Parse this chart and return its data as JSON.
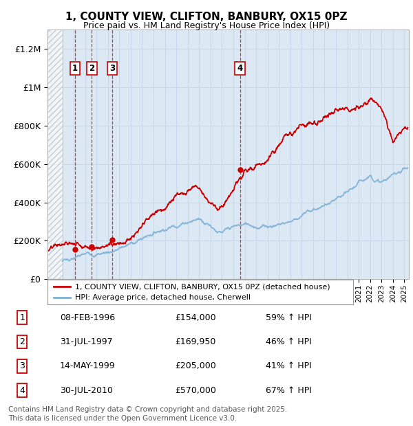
{
  "title": "1, COUNTY VIEW, CLIFTON, BANBURY, OX15 0PZ",
  "subtitle": "Price paid vs. HM Land Registry's House Price Index (HPI)",
  "ylim": [
    0,
    1300000
  ],
  "yticks": [
    0,
    200000,
    400000,
    600000,
    800000,
    1000000,
    1200000
  ],
  "ytick_labels": [
    "£0",
    "£200K",
    "£400K",
    "£600K",
    "£800K",
    "£1M",
    "£1.2M"
  ],
  "background_color": "#dce9f5",
  "hatch_end_year": 1995.0,
  "sales": [
    {
      "label": "1",
      "date": "08-FEB-1996",
      "year": 1996.12,
      "price": 154000,
      "hpi_pct": "59% ↑ HPI"
    },
    {
      "label": "2",
      "date": "31-JUL-1997",
      "year": 1997.58,
      "price": 169950,
      "hpi_pct": "46% ↑ HPI"
    },
    {
      "label": "3",
      "date": "14-MAY-1999",
      "year": 1999.37,
      "price": 205000,
      "hpi_pct": "41% ↑ HPI"
    },
    {
      "label": "4",
      "date": "30-JUL-2010",
      "year": 2010.58,
      "price": 570000,
      "hpi_pct": "67% ↑ HPI"
    }
  ],
  "legend_line1": "1, COUNTY VIEW, CLIFTON, BANBURY, OX15 0PZ (detached house)",
  "legend_line2": "HPI: Average price, detached house, Cherwell",
  "footer": "Contains HM Land Registry data © Crown copyright and database right 2025.\nThis data is licensed under the Open Government Licence v3.0.",
  "red_color": "#cc0000",
  "blue_color": "#7bafd4",
  "grid_color": "#c8d8e8",
  "xmin": 1993.7,
  "xmax": 2025.4
}
